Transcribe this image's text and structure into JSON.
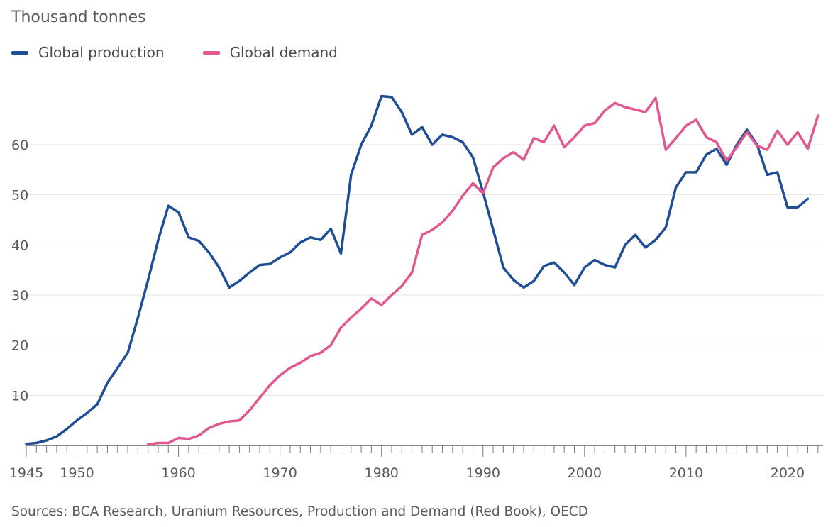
{
  "chart_data": {
    "type": "line",
    "unit_label": "Thousand tonnes",
    "source": "Sources: BCA Research, Uranium Resources, Production and Demand (Red Book), OECD",
    "x_ticks": [
      1945,
      1950,
      1960,
      1970,
      1980,
      1990,
      2000,
      2010,
      2020
    ],
    "y_ticks": [
      10,
      20,
      30,
      40,
      50,
      60
    ],
    "xlim": [
      1945,
      2023.5
    ],
    "ylim": [
      0,
      70
    ],
    "grid": true,
    "legend_position": "top-left",
    "series": [
      {
        "name": "Global production",
        "color": "#1f4e96",
        "x": [
          1945,
          1946,
          1947,
          1948,
          1949,
          1950,
          1951,
          1952,
          1953,
          1954,
          1955,
          1956,
          1957,
          1958,
          1959,
          1960,
          1961,
          1962,
          1963,
          1964,
          1965,
          1966,
          1967,
          1968,
          1969,
          1970,
          1971,
          1972,
          1973,
          1974,
          1975,
          1976,
          1977,
          1978,
          1979,
          1980,
          1981,
          1982,
          1983,
          1984,
          1985,
          1986,
          1987,
          1988,
          1989,
          1990,
          1991,
          1992,
          1993,
          1994,
          1995,
          1996,
          1997,
          1998,
          1999,
          2000,
          2001,
          2002,
          2003,
          2004,
          2005,
          2006,
          2007,
          2008,
          2009,
          2010,
          2011,
          2012,
          2013,
          2014,
          2015,
          2016,
          2017,
          2018,
          2019,
          2020,
          2021,
          2022
        ],
        "values": [
          0.3,
          0.5,
          1.0,
          1.8,
          3.3,
          5.0,
          6.5,
          8.2,
          12.5,
          15.5,
          18.5,
          25.5,
          33.0,
          41.0,
          47.8,
          46.5,
          41.5,
          40.8,
          38.5,
          35.5,
          31.5,
          32.8,
          34.5,
          36.0,
          36.2,
          37.5,
          38.5,
          40.5,
          41.5,
          41.0,
          43.2,
          38.3,
          54.0,
          60.0,
          63.8,
          69.7,
          69.5,
          66.5,
          62.0,
          63.5,
          60.0,
          62.0,
          61.5,
          60.5,
          57.5,
          50.5,
          43.0,
          35.5,
          33.0,
          31.5,
          32.8,
          35.8,
          36.5,
          34.5,
          32.0,
          35.5,
          37.0,
          36.0,
          35.5,
          40.0,
          42.0,
          39.5,
          41.0,
          43.5,
          51.5,
          54.5,
          54.5,
          58.0,
          59.2,
          56.0,
          60.0,
          63.0,
          60.0,
          54.0,
          54.5,
          47.5,
          47.5,
          49.2
        ]
      },
      {
        "name": "Global demand",
        "color": "#e0588f",
        "x": [
          1957,
          1958,
          1959,
          1960,
          1961,
          1962,
          1963,
          1964,
          1965,
          1966,
          1967,
          1968,
          1969,
          1970,
          1971,
          1972,
          1973,
          1974,
          1975,
          1976,
          1977,
          1978,
          1979,
          1980,
          1981,
          1982,
          1983,
          1984,
          1985,
          1986,
          1987,
          1988,
          1989,
          1990,
          1991,
          1992,
          1993,
          1994,
          1995,
          1996,
          1997,
          1998,
          1999,
          2000,
          2001,
          2002,
          2003,
          2004,
          2005,
          2006,
          2007,
          2008,
          2009,
          2010,
          2011,
          2012,
          2013,
          2014,
          2015,
          2016,
          2017,
          2018,
          2019,
          2020,
          2021,
          2022,
          2023
        ],
        "values": [
          0.2,
          0.5,
          0.5,
          1.5,
          1.3,
          2.0,
          3.5,
          4.3,
          4.8,
          5.0,
          7.0,
          9.5,
          12.0,
          14.0,
          15.5,
          16.5,
          17.8,
          18.5,
          20.0,
          23.5,
          25.5,
          27.3,
          29.3,
          28.0,
          30.0,
          31.8,
          34.5,
          42.0,
          43.0,
          44.5,
          46.8,
          49.8,
          52.3,
          50.3,
          55.5,
          57.3,
          58.5,
          57.0,
          61.3,
          60.5,
          63.8,
          59.5,
          61.5,
          63.8,
          64.3,
          66.8,
          68.3,
          67.5,
          67.0,
          66.5,
          69.3,
          59.0,
          61.3,
          63.8,
          65.0,
          61.5,
          60.5,
          56.8,
          59.5,
          62.5,
          59.8,
          59.0,
          62.8,
          60.0,
          62.5,
          59.2,
          65.8
        ]
      }
    ]
  }
}
